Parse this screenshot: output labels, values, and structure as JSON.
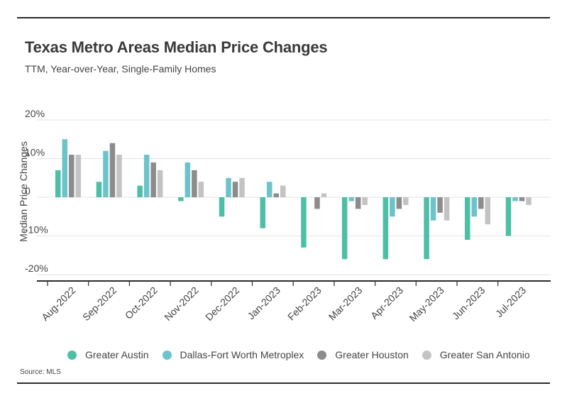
{
  "title": "Texas Metro Areas Median Price Changes",
  "subtitle": "TTM, Year-over-Year, Single-Family Homes",
  "source": "Source: MLS",
  "chart_data": {
    "type": "bar",
    "categories": [
      "Aug-2022",
      "Sep-2022",
      "Oct-2022",
      "Nov-2022",
      "Dec-2022",
      "Jan-2023",
      "Feb-2023",
      "Mar-2023",
      "Apr-2023",
      "May-2023",
      "Jun-2023",
      "Jul-2023"
    ],
    "series": [
      {
        "name": "Greater Austin",
        "color": "#4dbfa6",
        "values": [
          7,
          4,
          3,
          -1,
          -5,
          -8,
          -13,
          -16,
          -16,
          -16,
          -11,
          -10
        ]
      },
      {
        "name": "Dallas-Fort Worth Metroplex",
        "color": "#6cc3cb",
        "values": [
          15,
          12,
          11,
          9,
          5,
          4,
          0,
          -1,
          -5,
          -6,
          -5,
          -1
        ]
      },
      {
        "name": "Greater Houston",
        "color": "#8c8c8c",
        "values": [
          11,
          14,
          9,
          7,
          4,
          1,
          -3,
          -3,
          -3,
          -4,
          -3,
          -1
        ]
      },
      {
        "name": "Greater San Antonio",
        "color": "#c3c3c3",
        "values": [
          11,
          11,
          7,
          4,
          5,
          3,
          1,
          -2,
          -2,
          -6,
          -7,
          -2
        ]
      }
    ],
    "ylabel": "Median Price Changes",
    "xlabel": "",
    "yticks": [
      20,
      10,
      0,
      -10,
      -20
    ],
    "ytick_labels": [
      "20%",
      "10%",
      "0",
      "-10%",
      "-20%"
    ],
    "ylim": [
      -21,
      21
    ],
    "grid": true,
    "legend": "bottom"
  }
}
